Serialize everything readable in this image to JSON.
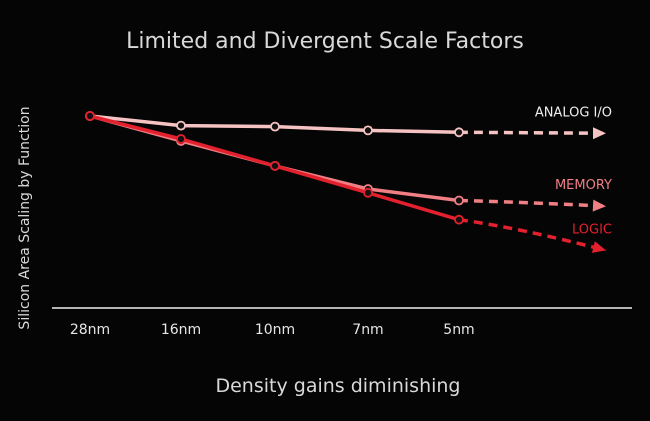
{
  "chart_data": {
    "type": "line",
    "title": "Limited and Divergent Scale Factors",
    "xlabel": "Density gains diminishing",
    "ylabel": "Silicon Area Scaling by Function",
    "categories": [
      "28nm",
      "16nm",
      "10nm",
      "7nm",
      "5nm"
    ],
    "y_ticks_shown": false,
    "ylim": [
      0,
      1
    ],
    "series": [
      {
        "name": "ANALOG I/O",
        "color": "#f6c3c3",
        "values": [
          1.0,
          0.95,
          0.945,
          0.925,
          0.915
        ],
        "projected_end": 0.91
      },
      {
        "name": "MEMORY",
        "color": "#ef7f84",
        "values": [
          1.0,
          0.87,
          0.74,
          0.62,
          0.56
        ],
        "projected_end": 0.53
      },
      {
        "name": "LOGIC",
        "color": "#e3202d",
        "values": [
          1.0,
          0.88,
          0.74,
          0.6,
          0.46
        ],
        "projected_end": 0.3
      }
    ]
  }
}
